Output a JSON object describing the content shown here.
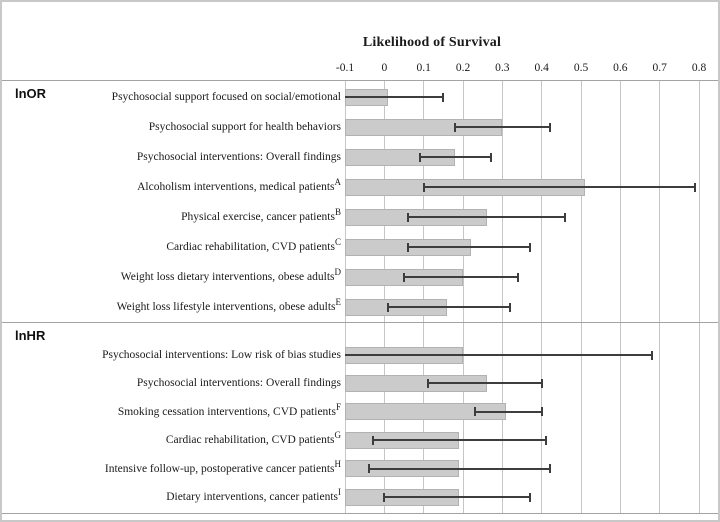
{
  "chart_data": {
    "type": "bar",
    "orientation": "horizontal",
    "title": "Likelihood of Survival",
    "xlabel": "",
    "ylabel": "",
    "grid": "vertical",
    "legend": null,
    "bar_base": -0.1,
    "axis": {
      "min": -0.1,
      "max": 0.8,
      "step": 0.1,
      "ticks": [
        "-0.1",
        "0",
        "0.1",
        "0.2",
        "0.3",
        "0.4",
        "0.5",
        "0.6",
        "0.7",
        "0.8"
      ]
    },
    "sections": [
      {
        "label": "lnOR",
        "rows": [
          {
            "label": "Psychosocial support  focused on social/emotional",
            "superscript": "",
            "value": 0.01,
            "ci_low": -0.1,
            "ci_high": 0.15,
            "ci_low_clipped": true
          },
          {
            "label": "Psychosocial support for health behaviors",
            "superscript": "",
            "value": 0.3,
            "ci_low": 0.18,
            "ci_high": 0.42,
            "ci_low_clipped": false
          },
          {
            "label": "Psychosocial interventions: Overall findings",
            "superscript": "",
            "value": 0.18,
            "ci_low": 0.09,
            "ci_high": 0.27,
            "ci_low_clipped": false
          },
          {
            "label": "Alcoholism interventions, medical patients",
            "superscript": "A",
            "value": 0.51,
            "ci_low": 0.1,
            "ci_high": 0.79,
            "ci_low_clipped": false
          },
          {
            "label": "Physical exercise, cancer patients",
            "superscript": "B",
            "value": 0.26,
            "ci_low": 0.06,
            "ci_high": 0.46,
            "ci_low_clipped": false
          },
          {
            "label": "Cardiac rehabilitation, CVD patients",
            "superscript": "C",
            "value": 0.22,
            "ci_low": 0.06,
            "ci_high": 0.37,
            "ci_low_clipped": false
          },
          {
            "label": "Weight loss dietary interventions, obese adults",
            "superscript": "D",
            "value": 0.2,
            "ci_low": 0.05,
            "ci_high": 0.34,
            "ci_low_clipped": false
          },
          {
            "label": "Weight loss lifestyle interventions, obese adults",
            "superscript": "E",
            "value": 0.16,
            "ci_low": 0.01,
            "ci_high": 0.32,
            "ci_low_clipped": false
          }
        ]
      },
      {
        "label": "lnHR",
        "rows": [
          {
            "label": "Psychosocial interventions: Low risk of bias studies",
            "superscript": "",
            "value": 0.2,
            "ci_low": -0.1,
            "ci_high": 0.68,
            "ci_low_clipped": true
          },
          {
            "label": "Psychosocial interventions: Overall findings",
            "superscript": "",
            "value": 0.26,
            "ci_low": 0.11,
            "ci_high": 0.4,
            "ci_low_clipped": false
          },
          {
            "label": "Smoking cessation interventions, CVD patients",
            "superscript": "F",
            "value": 0.31,
            "ci_low": 0.23,
            "ci_high": 0.4,
            "ci_low_clipped": false
          },
          {
            "label": "Cardiac rehabilitation, CVD patients",
            "superscript": "G",
            "value": 0.19,
            "ci_low": -0.03,
            "ci_high": 0.41,
            "ci_low_clipped": false
          },
          {
            "label": "Intensive follow-up, postoperative cancer patients",
            "superscript": "H",
            "value": 0.19,
            "ci_low": -0.04,
            "ci_high": 0.42,
            "ci_low_clipped": false
          },
          {
            "label": "Dietary interventions, cancer patients",
            "superscript": "I",
            "value": 0.19,
            "ci_low": 0.0,
            "ci_high": 0.37,
            "ci_low_clipped": false
          }
        ]
      }
    ],
    "colors": {
      "bar_fill": "#cbcbcb",
      "bar_border": "#b2b2b2",
      "error_bar": "#3d3d3d",
      "gridline": "#c6c6c6",
      "divider": "#a3a3a3",
      "text": "#1a1a1a",
      "background": "#ffffff",
      "frame_border": "#c8c8c8"
    }
  }
}
